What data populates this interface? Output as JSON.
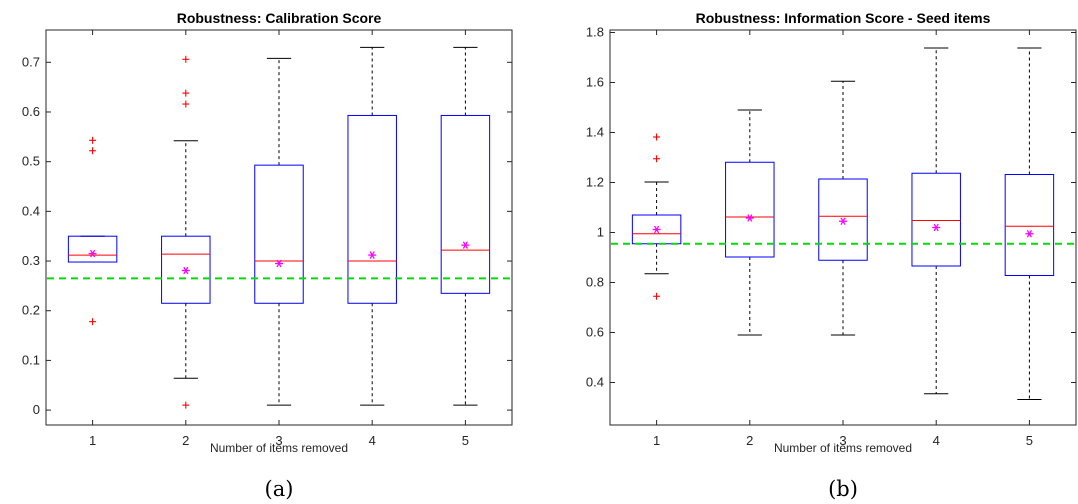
{
  "chart_data": [
    {
      "type": "box",
      "title": "Robustness: Calibration Score",
      "xlabel": "Number of items removed",
      "ylabel": "",
      "caption": "(a)",
      "categories": [
        "1",
        "2",
        "3",
        "4",
        "5"
      ],
      "ylim": [
        -0.03,
        0.765
      ],
      "yticks": [
        0,
        0.1,
        0.2,
        0.3,
        0.4,
        0.5,
        0.6,
        0.7
      ],
      "ytick_labels": [
        "0",
        "0.1",
        "0.2",
        "0.3",
        "0.4",
        "0.5",
        "0.6",
        "0.7"
      ],
      "boxes": [
        {
          "whisker_low": 0.298,
          "q1": 0.298,
          "median": 0.312,
          "q3": 0.35,
          "whisker_high": 0.35,
          "mean": 0.315,
          "outliers": [
            0.178,
            0.522,
            0.543
          ]
        },
        {
          "whisker_low": 0.064,
          "q1": 0.215,
          "median": 0.314,
          "q3": 0.35,
          "whisker_high": 0.542,
          "mean": 0.281,
          "outliers": [
            0.01,
            0.616,
            0.638,
            0.706
          ]
        },
        {
          "whisker_low": 0.01,
          "q1": 0.215,
          "median": 0.3,
          "q3": 0.493,
          "whisker_high": 0.708,
          "mean": 0.295,
          "outliers": []
        },
        {
          "whisker_low": 0.01,
          "q1": 0.215,
          "median": 0.3,
          "q3": 0.593,
          "whisker_high": 0.73,
          "mean": 0.312,
          "outliers": []
        },
        {
          "whisker_low": 0.01,
          "q1": 0.235,
          "median": 0.322,
          "q3": 0.593,
          "whisker_high": 0.73,
          "mean": 0.332,
          "outliers": []
        }
      ],
      "reference_line": 0.265,
      "colors": {
        "box": "#0000ff",
        "median": "#ff0000",
        "mean": "#ff00ff",
        "outlier": "#ff0000",
        "whisker": "#000000",
        "reference": "#00dd00"
      }
    },
    {
      "type": "box",
      "title": "Robustness: Information Score - Seed items",
      "xlabel": "Number of items removed",
      "ylabel": "",
      "caption": "(b)",
      "categories": [
        "1",
        "2",
        "3",
        "4",
        "5"
      ],
      "ylim": [
        0.23,
        1.81
      ],
      "yticks": [
        0.4,
        0.6,
        0.8,
        1.0,
        1.2,
        1.4,
        1.6,
        1.8
      ],
      "ytick_labels": [
        "0.4",
        "0.6",
        "0.8",
        "1",
        "1.2",
        "1.4",
        "1.6",
        "1.8"
      ],
      "boxes": [
        {
          "whisker_low": 0.835,
          "q1": 0.955,
          "median": 0.995,
          "q3": 1.07,
          "whisker_high": 1.202,
          "mean": 1.012,
          "outliers": [
            0.745,
            1.295,
            1.382
          ]
        },
        {
          "whisker_low": 0.59,
          "q1": 0.902,
          "median": 1.062,
          "q3": 1.281,
          "whisker_high": 1.49,
          "mean": 1.058,
          "outliers": []
        },
        {
          "whisker_low": 0.59,
          "q1": 0.889,
          "median": 1.065,
          "q3": 1.214,
          "whisker_high": 1.605,
          "mean": 1.045,
          "outliers": []
        },
        {
          "whisker_low": 0.355,
          "q1": 0.866,
          "median": 1.048,
          "q3": 1.237,
          "whisker_high": 1.738,
          "mean": 1.02,
          "outliers": []
        },
        {
          "whisker_low": 0.332,
          "q1": 0.828,
          "median": 1.025,
          "q3": 1.232,
          "whisker_high": 1.738,
          "mean": 0.995,
          "outliers": []
        }
      ],
      "reference_line": 0.955,
      "colors": {
        "box": "#0000ff",
        "median": "#ff0000",
        "mean": "#ff00ff",
        "outlier": "#ff0000",
        "whisker": "#000000",
        "reference": "#00dd00"
      }
    }
  ]
}
